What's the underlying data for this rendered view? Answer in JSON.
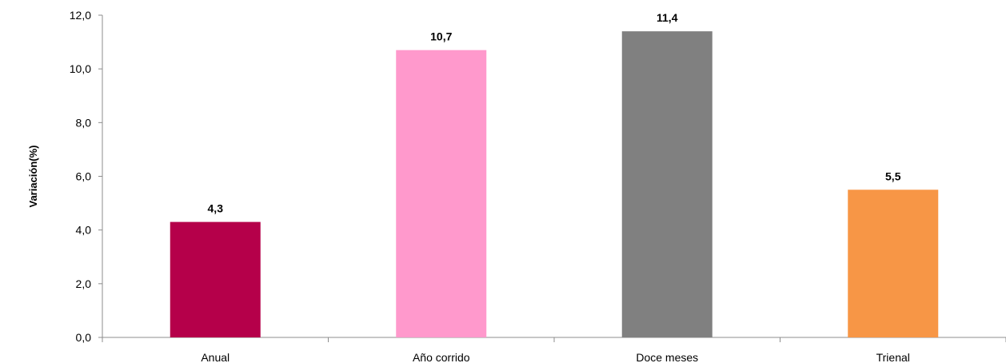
{
  "chart_data": {
    "type": "bar",
    "title": "",
    "xlabel": "",
    "ylabel": "Variación(%)",
    "ylim": [
      0,
      12
    ],
    "yticks": [
      0,
      2,
      4,
      6,
      8,
      10,
      12
    ],
    "ytick_labels": [
      "0,0",
      "2,0",
      "4,0",
      "6,0",
      "8,0",
      "10,0",
      "12,0"
    ],
    "grid": false,
    "legend": "none",
    "categories": [
      "Anual",
      "Año corrido",
      "Doce meses",
      "Trienal"
    ],
    "values": [
      4.3,
      10.7,
      11.4,
      5.5
    ],
    "value_labels": [
      "4,3",
      "10,7",
      "11,4",
      "5,5"
    ],
    "colors": [
      "#b5004a",
      "#ff99cc",
      "#808080",
      "#f79646"
    ]
  }
}
